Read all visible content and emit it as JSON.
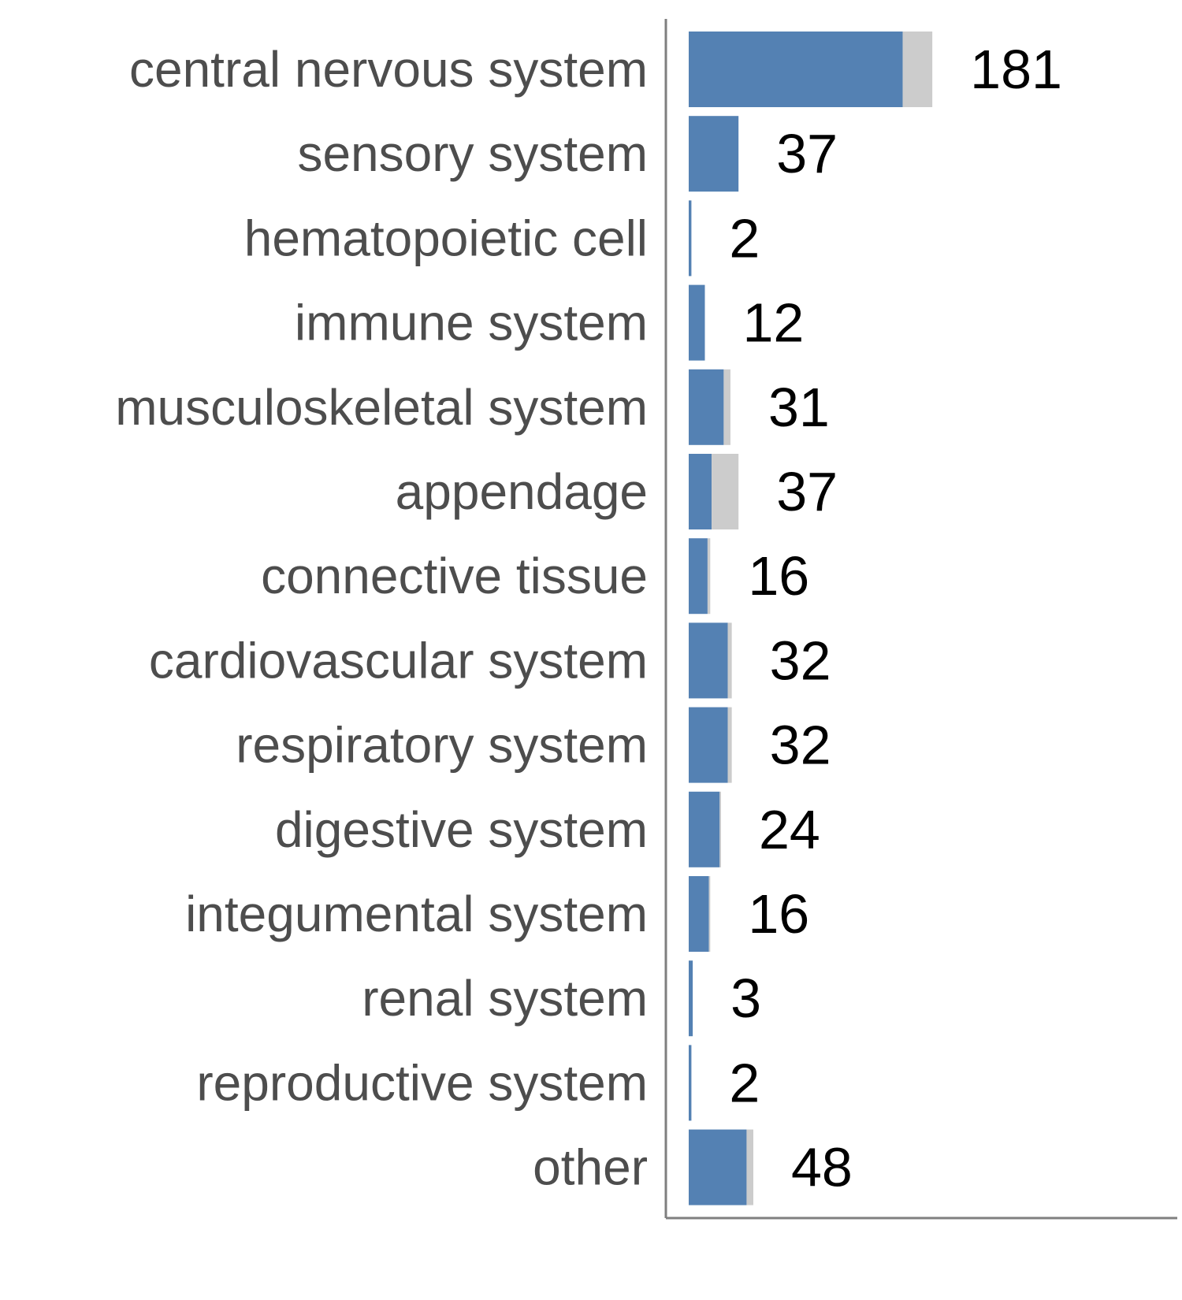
{
  "chart_data": {
    "type": "bar",
    "orientation": "horizontal",
    "stacked": true,
    "categories": [
      "central nervous system",
      "sensory system",
      "hematopoietic cell",
      "immune system",
      "musculoskeletal system",
      "appendage",
      "connective tissue",
      "cardiovascular system",
      "respiratory system",
      "digestive system",
      "integumental system",
      "renal system",
      "reproductive system",
      "other"
    ],
    "series": [
      {
        "values": [
          159,
          37,
          2,
          12,
          26,
          17,
          14,
          29,
          29,
          23,
          15,
          3,
          2,
          43
        ]
      },
      {
        "values": [
          22,
          0,
          0,
          0,
          5,
          20,
          2,
          3,
          3,
          1,
          1,
          0,
          0,
          5
        ]
      }
    ],
    "totals": [
      181,
      37,
      2,
      12,
      31,
      37,
      16,
      32,
      32,
      24,
      16,
      3,
      2,
      48
    ],
    "xlim": [
      0,
      363
    ],
    "grid": false,
    "legend": "none",
    "colors": {
      "primary": "#5481b3",
      "secondary": "#cccccc",
      "axis": "#7f7f7f",
      "category_text": "#4d4d4d",
      "value_text": "#000000"
    }
  }
}
